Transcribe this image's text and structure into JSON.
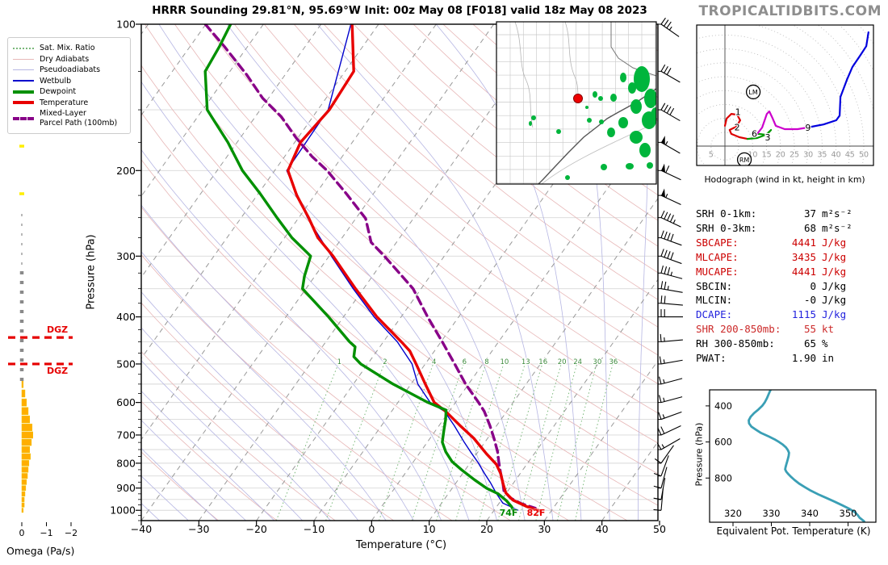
{
  "title": "HRRR Sounding 29.81°N, 95.69°W Init: 00z May 08 [F018] valid 18z May 08 2023",
  "brand": "TROPICALTIDBITS.COM",
  "colors": {
    "temperature": "#e80000",
    "dewpoint": "#009000",
    "wetbulb": "#0000cc",
    "parcel": "#880088",
    "dry_adiabat": "#e7b7b7",
    "pseudoadiabat": "#b6b6e3",
    "mix_ratio": "#7ab87a",
    "mix_ratio_label": "#3d8b3d",
    "isotherm": "#999999",
    "grid": "#d8d8d8",
    "omega_bar": "#ffae00",
    "omega_near_zero": "#ffee00",
    "dgz": "#e60000",
    "theta_e": "#3a9fb5",
    "brand_gray": "#8e8e8e",
    "hodo_seg_0_2km": "#dd0000",
    "hodo_seg_2_3km": "#009900",
    "hodo_seg_6km": "#cc00cc",
    "hodo_seg_9km": "#0000dd"
  },
  "legend": {
    "items": [
      {
        "label": "Sat. Mix. Ratio",
        "color": "#7ab87a",
        "lineStyle": "dotted",
        "weight": 2
      },
      {
        "label": "Dry Adiabats",
        "color": "#e7b7b7",
        "lineStyle": "solid",
        "weight": 1
      },
      {
        "label": "Pseudoadiabats",
        "color": "#b6b6e3",
        "lineStyle": "solid",
        "weight": 1
      },
      {
        "label": "Wetbulb",
        "color": "#0000cc",
        "lineStyle": "solid",
        "weight": 2
      },
      {
        "label": "Dewpoint",
        "color": "#009000",
        "lineStyle": "solid",
        "weight": 4
      },
      {
        "label": "Temperature",
        "color": "#e80000",
        "lineStyle": "solid",
        "weight": 4
      },
      {
        "label": "Mixed-Layer\nParcel Path (100mb)",
        "color": "#880088",
        "lineStyle": "dashed",
        "weight": 4
      }
    ]
  },
  "skewt": {
    "xlabel": "Temperature (°C)",
    "ylabel": "Pressure (hPa)",
    "t_ticks": [
      -40,
      -30,
      -20,
      -10,
      0,
      10,
      20,
      30,
      40,
      50
    ],
    "p_ticks": [
      100,
      200,
      300,
      400,
      500,
      600,
      700,
      800,
      900,
      1000
    ],
    "mix_ratio_values": [
      1,
      2,
      4,
      6,
      8,
      10,
      13,
      16,
      20,
      24,
      30,
      36
    ]
  },
  "surface": {
    "dewpoint_f": "74F",
    "temp_f": "82F"
  },
  "omega": {
    "label": "Omega (Pa/s)",
    "ticks": [
      0,
      -1,
      -2
    ],
    "near_zero_levels_hpa": [
      178,
      223
    ]
  },
  "dgz": {
    "label": "DGZ",
    "levels_hpa": [
      441,
      500
    ]
  },
  "hodograph": {
    "caption": "Hodograph (wind in kt, height in km)",
    "ring_step_kt": 5,
    "ring_labels": [
      5,
      10,
      15,
      20,
      25,
      30,
      35,
      40,
      45,
      50
    ],
    "markers": [
      {
        "text": "LM",
        "u": 10.2,
        "v": 19.5
      },
      {
        "text": "RM",
        "u": 7.0,
        "v": -4.9
      }
    ],
    "height_labels": [
      {
        "text": "1",
        "u": 4.7,
        "v": 12.2
      },
      {
        "text": "2",
        "u": 4.4,
        "v": 6.7
      },
      {
        "text": "6",
        "u": 10.6,
        "v": 4.3
      },
      {
        "text": "3",
        "u": 15.4,
        "v": 3.1
      },
      {
        "text": "9",
        "u": 29.9,
        "v": 6.6
      }
    ]
  },
  "stats": {
    "rows": [
      {
        "label": "SRH 0-1km:",
        "value": "37",
        "unit": "m²s⁻²",
        "color": "#000000"
      },
      {
        "label": "SRH 0-3km:",
        "value": "68",
        "unit": "m²s⁻²",
        "color": "#000000"
      },
      {
        "label": "SBCAPE:",
        "value": "4441",
        "unit": "J/kg",
        "color": "#cc0000"
      },
      {
        "label": "MLCAPE:",
        "value": "3435",
        "unit": "J/kg",
        "color": "#cc0000"
      },
      {
        "label": "MUCAPE:",
        "value": "4441",
        "unit": "J/kg",
        "color": "#cc0000"
      },
      {
        "label": "SBCIN:",
        "value": "0",
        "unit": "J/kg",
        "color": "#000000"
      },
      {
        "label": "MLCIN:",
        "value": "-0",
        "unit": "J/kg",
        "color": "#000000"
      },
      {
        "label": "DCAPE:",
        "value": "1115",
        "unit": "J/kg",
        "color": "#2222dd"
      },
      {
        "label": "SHR 200-850mb:",
        "value": "55",
        "unit": "kt",
        "color": "#cc2a2a"
      },
      {
        "label": "RH 300-850mb:",
        "value": "65",
        "unit": "%",
        "color": "#000000"
      },
      {
        "label": "PWAT:",
        "value": "1.90",
        "unit": "in",
        "color": "#000000"
      }
    ]
  },
  "theta_e": {
    "xlabel": "Equivalent Pot. Temperature (K)",
    "ylabel": "Pressure (hPa)",
    "x_ticks": [
      320,
      330,
      340,
      350
    ],
    "p_ticks": [
      400,
      600,
      800
    ]
  },
  "chart_data": {
    "type": "skewt-sounding",
    "pressure_range_hpa": [
      100,
      1050
    ],
    "temperature_axis_c": [
      -40,
      50
    ],
    "profiles": {
      "temperature_c": [
        [
          100,
          -64.6
        ],
        [
          125,
          -58.5
        ],
        [
          150,
          -58.0
        ],
        [
          175,
          -59.0
        ],
        [
          200,
          -57.7
        ],
        [
          225,
          -53.1
        ],
        [
          250,
          -48.3
        ],
        [
          275,
          -44.2
        ],
        [
          300,
          -39.3
        ],
        [
          325,
          -35.2
        ],
        [
          350,
          -31.4
        ],
        [
          400,
          -24.2
        ],
        [
          450,
          -16.9
        ],
        [
          470,
          -14.3
        ],
        [
          500,
          -11.6
        ],
        [
          550,
          -7.5
        ],
        [
          600,
          -3.7
        ],
        [
          626,
          -0.6
        ],
        [
          669,
          3.6
        ],
        [
          711,
          7.6
        ],
        [
          765,
          11.7
        ],
        [
          804,
          14.7
        ],
        [
          840,
          16.6
        ],
        [
          880,
          18.2
        ],
        [
          921,
          19.9
        ],
        [
          953,
          22.0
        ],
        [
          983,
          25.3
        ],
        [
          1002,
          27.9
        ]
      ],
      "dewpoint_c": [
        [
          100,
          -85.7
        ],
        [
          111,
          -84.9
        ],
        [
          125,
          -84.3
        ],
        [
          150,
          -79.2
        ],
        [
          155,
          -77.6
        ],
        [
          175,
          -71.6
        ],
        [
          200,
          -65.6
        ],
        [
          223,
          -59.7
        ],
        [
          250,
          -53.8
        ],
        [
          275,
          -48.7
        ],
        [
          300,
          -43.2
        ],
        [
          330,
          -41.8
        ],
        [
          350,
          -40.6
        ],
        [
          400,
          -32.6
        ],
        [
          450,
          -25.9
        ],
        [
          461,
          -24.3
        ],
        [
          483,
          -23.3
        ],
        [
          500,
          -21.2
        ],
        [
          550,
          -13.1
        ],
        [
          600,
          -4.8
        ],
        [
          622,
          -0.7
        ],
        [
          651,
          0.4
        ],
        [
          684,
          1.4
        ],
        [
          724,
          2.6
        ],
        [
          758,
          4.4
        ],
        [
          794,
          6.7
        ],
        [
          826,
          9.4
        ],
        [
          865,
          12.8
        ],
        [
          901,
          16.0
        ],
        [
          924,
          18.6
        ],
        [
          956,
          21.0
        ],
        [
          983,
          22.6
        ],
        [
          1002,
          23.4
        ]
      ],
      "wetbulb_c": [
        [
          100,
          -64.8
        ],
        [
          150,
          -58.2
        ],
        [
          200,
          -57.9
        ],
        [
          250,
          -48.5
        ],
        [
          300,
          -39.6
        ],
        [
          350,
          -31.8
        ],
        [
          400,
          -24.7
        ],
        [
          450,
          -17.6
        ],
        [
          500,
          -12.3
        ],
        [
          550,
          -8.8
        ],
        [
          600,
          -4.4
        ],
        [
          626,
          -0.8
        ],
        [
          669,
          2.6
        ],
        [
          724,
          6.4
        ],
        [
          758,
          8.7
        ],
        [
          797,
          11.3
        ],
        [
          840,
          13.8
        ],
        [
          880,
          16.1
        ],
        [
          921,
          18.2
        ],
        [
          966,
          20.6
        ],
        [
          999,
          24.1
        ]
      ],
      "parcel_c": [
        [
          100,
          -90.1
        ],
        [
          111,
          -84.1
        ],
        [
          127,
          -76.7
        ],
        [
          142,
          -71.0
        ],
        [
          155,
          -65.5
        ],
        [
          171,
          -60.4
        ],
        [
          187,
          -55.3
        ],
        [
          200,
          -50.9
        ],
        [
          224,
          -44.5
        ],
        [
          251,
          -38.3
        ],
        [
          281,
          -34.4
        ],
        [
          300,
          -30.4
        ],
        [
          350,
          -21.4
        ],
        [
          400,
          -15.4
        ],
        [
          450,
          -9.8
        ],
        [
          500,
          -4.9
        ],
        [
          550,
          -0.5
        ],
        [
          600,
          4.0
        ],
        [
          626,
          6.1
        ],
        [
          669,
          8.8
        ],
        [
          711,
          11.1
        ],
        [
          758,
          13.4
        ],
        [
          794,
          14.8
        ],
        [
          840,
          16.6
        ],
        [
          880,
          18.2
        ],
        [
          912,
          19.3
        ],
        [
          943,
          21.3
        ],
        [
          969,
          23.9
        ],
        [
          990,
          26.9
        ]
      ]
    },
    "winds_kt": [
      [
        100,
        305,
        35
      ],
      [
        125,
        300,
        30
      ],
      [
        150,
        300,
        40
      ],
      [
        175,
        300,
        55
      ],
      [
        200,
        295,
        60
      ],
      [
        225,
        295,
        55
      ],
      [
        250,
        295,
        45
      ],
      [
        275,
        290,
        40
      ],
      [
        300,
        290,
        40
      ],
      [
        325,
        285,
        35
      ],
      [
        350,
        280,
        25
      ],
      [
        375,
        275,
        20
      ],
      [
        400,
        270,
        20
      ],
      [
        450,
        265,
        15
      ],
      [
        500,
        260,
        15
      ],
      [
        550,
        255,
        15
      ],
      [
        600,
        255,
        15
      ],
      [
        650,
        250,
        15
      ],
      [
        700,
        245,
        18
      ],
      [
        750,
        240,
        15
      ],
      [
        800,
        215,
        10
      ],
      [
        850,
        200,
        10
      ],
      [
        900,
        195,
        10
      ],
      [
        950,
        190,
        12
      ],
      [
        1000,
        185,
        10
      ]
    ],
    "omega_pas": [
      [
        550,
        -0.06
      ],
      [
        575,
        -0.13
      ],
      [
        600,
        -0.19
      ],
      [
        625,
        -0.26
      ],
      [
        650,
        -0.32
      ],
      [
        675,
        -0.42
      ],
      [
        700,
        -0.45
      ],
      [
        725,
        -0.39
      ],
      [
        750,
        -0.32
      ],
      [
        775,
        -0.35
      ],
      [
        800,
        -0.29
      ],
      [
        825,
        -0.26
      ],
      [
        850,
        -0.23
      ],
      [
        875,
        -0.19
      ],
      [
        900,
        -0.16
      ],
      [
        925,
        -0.13
      ],
      [
        950,
        -0.1
      ],
      [
        975,
        -0.1
      ],
      [
        1000,
        -0.06
      ]
    ],
    "hodograph_kt": {
      "segments": [
        {
          "color_key": "hodo_seg_0_2km",
          "points": [
            [
              0,
              7.3
            ],
            [
              0.6,
              9.9
            ],
            [
              2.3,
              11.6
            ],
            [
              4.4,
              11.3
            ],
            [
              5.5,
              9.3
            ],
            [
              4.1,
              7.0
            ],
            [
              1.7,
              5.8
            ],
            [
              2.3,
              4.4
            ],
            [
              5.2,
              3.2
            ],
            [
              8.1,
              2.6
            ]
          ]
        },
        {
          "color_key": "hodo_seg_2_3km",
          "points": [
            [
              8.1,
              2.6
            ],
            [
              11.6,
              2.9
            ],
            [
              14.8,
              4.1
            ],
            [
              16.6,
              5.8
            ],
            [
              15.0,
              4.0
            ],
            [
              13.0,
              4.3
            ],
            [
              11.6,
              4.4
            ]
          ]
        },
        {
          "color_key": "hodo_seg_6km",
          "points": [
            [
              11.6,
              4.4
            ],
            [
              13.4,
              6.7
            ],
            [
              15.1,
              11.6
            ],
            [
              16.0,
              12.5
            ],
            [
              17.2,
              9.9
            ],
            [
              18.3,
              7.3
            ],
            [
              21.5,
              6.1
            ],
            [
              26.2,
              6.1
            ],
            [
              29.7,
              6.7
            ]
          ]
        },
        {
          "color_key": "hodo_seg_9km",
          "points": [
            [
              29.7,
              6.7
            ],
            [
              35.5,
              7.8
            ],
            [
              40.1,
              9.3
            ],
            [
              41.3,
              11.0
            ],
            [
              41.6,
              17.7
            ],
            [
              43.9,
              23.8
            ],
            [
              45.9,
              28.5
            ],
            [
              48.8,
              32.8
            ],
            [
              50.9,
              36.0
            ],
            [
              51.7,
              41.0
            ]
          ]
        }
      ]
    },
    "theta_e_k": [
      [
        311,
        329.8
      ],
      [
        320,
        329.6
      ],
      [
        340,
        329.2
      ],
      [
        360,
        328.8
      ],
      [
        380,
        328.3
      ],
      [
        400,
        327.6
      ],
      [
        420,
        326.6
      ],
      [
        440,
        325.5
      ],
      [
        460,
        324.6
      ],
      [
        480,
        324.1
      ],
      [
        497,
        324.2
      ],
      [
        515,
        324.8
      ],
      [
        532,
        326.0
      ],
      [
        550,
        327.3
      ],
      [
        570,
        329.4
      ],
      [
        585,
        330.8
      ],
      [
        600,
        332.0
      ],
      [
        615,
        333.0
      ],
      [
        630,
        333.8
      ],
      [
        645,
        334.3
      ],
      [
        660,
        334.6
      ],
      [
        678,
        334.5
      ],
      [
        695,
        334.3
      ],
      [
        710,
        334.1
      ],
      [
        725,
        333.9
      ],
      [
        740,
        333.7
      ],
      [
        752,
        333.6
      ],
      [
        765,
        333.9
      ],
      [
        780,
        334.5
      ],
      [
        795,
        335.2
      ],
      [
        810,
        336.0
      ],
      [
        830,
        337.2
      ],
      [
        850,
        338.7
      ],
      [
        870,
        340.3
      ],
      [
        890,
        342.2
      ],
      [
        910,
        344.3
      ],
      [
        930,
        346.4
      ],
      [
        950,
        348.4
      ],
      [
        970,
        350.3
      ],
      [
        990,
        351.8
      ],
      [
        1005,
        352.5
      ],
      [
        1020,
        353.0
      ],
      [
        1040,
        354.2
      ]
    ]
  }
}
